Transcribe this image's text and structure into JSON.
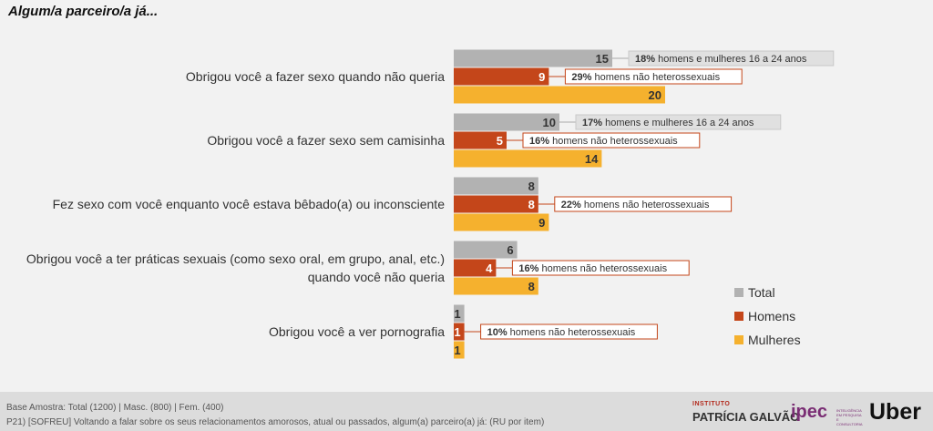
{
  "title": "Algum/a parceiro/a já...",
  "chart_data": {
    "type": "bar",
    "orientation": "horizontal",
    "categories": [
      "Obrigou você a fazer sexo quando não queria",
      "Obrigou você a fazer sexo sem camisinha",
      "Fez sexo com você enquanto você estava bêbado(a) ou inconsciente",
      "Obrigou você a ter práticas sexuais (como sexo oral, em grupo, anal, etc.) quando você não queria",
      "Obrigou você a ver pornografia"
    ],
    "category_lines": [
      [
        "Obrigou você a fazer sexo quando não queria"
      ],
      [
        "Obrigou você a fazer sexo sem camisinha"
      ],
      [
        "Fez sexo com você enquanto você estava bêbado(a) ou inconsciente"
      ],
      [
        "Obrigou você a ter práticas sexuais (como sexo oral, em grupo, anal, etc.)",
        "quando você não queria"
      ],
      [
        "Obrigou você a ver pornografia"
      ]
    ],
    "series": [
      {
        "name": "Total",
        "color": "#b2b2b2",
        "values": [
          15,
          10,
          8,
          6,
          1
        ]
      },
      {
        "name": "Homens",
        "color": "#c4461a",
        "values": [
          9,
          5,
          8,
          4,
          1
        ]
      },
      {
        "name": "Mulheres",
        "color": "#f5b12e",
        "values": [
          20,
          14,
          9,
          8,
          1
        ]
      }
    ],
    "annotations": [
      {
        "category": 0,
        "series": 0,
        "bold": "18%",
        "text": " homens e mulheres 16 a 24 anos"
      },
      {
        "category": 0,
        "series": 1,
        "bold": "29%",
        "text": " homens não heterossexuais"
      },
      {
        "category": 1,
        "series": 0,
        "bold": "17%",
        "text": " homens e mulheres 16 a 24 anos"
      },
      {
        "category": 1,
        "series": 1,
        "bold": "16%",
        "text": " homens não heterossexuais"
      },
      {
        "category": 2,
        "series": 1,
        "bold": "22%",
        "text": " homens não heterossexuais"
      },
      {
        "category": 3,
        "series": 1,
        "bold": "16%",
        "text": " homens não heterossexuais"
      },
      {
        "category": 4,
        "series": 1,
        "bold": "10%",
        "text": " homens não heterossexuais"
      }
    ],
    "legend_position": "right",
    "xlim": [
      0,
      20
    ]
  },
  "footer": {
    "base": "Base Amostra: Total (1200) | Masc. (800) | Fem. (400)",
    "question": "P21) [SOFREU] Voltando a falar sobre os seus relacionamentos amorosos, atual ou passados, algum(a) parceiro(a) já: (RU por item)",
    "logo_ipg_top": "INSTITUTO",
    "logo_ipg_bottom": "PATRÍCIA GALVÃO",
    "logo_ipec": "ipec",
    "logo_ipec_sub": "INTELIGÊNCIA EM PESQUISA E CONSULTORIA",
    "logo_uber": "Uber"
  }
}
